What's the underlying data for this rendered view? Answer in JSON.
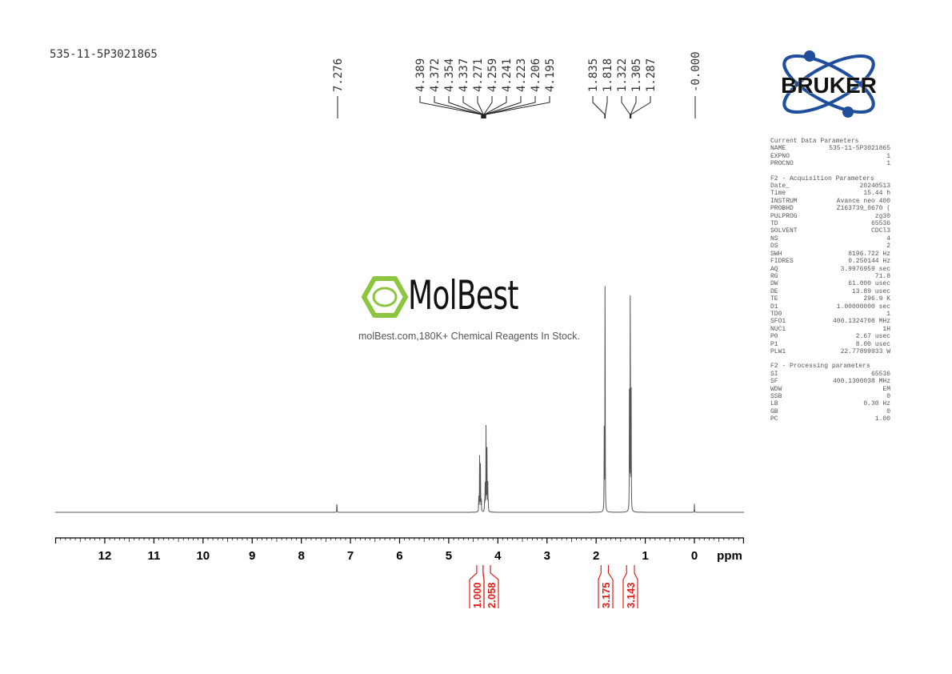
{
  "sample_name": "535-11-5P3021865",
  "watermark": {
    "brand": "MolBest",
    "tagline": "molBest.com,180K+ Chemical Reagents In Stock."
  },
  "logo": {
    "text": "BRUKER",
    "color": "#1f4e9c"
  },
  "parameters": {
    "current": {
      "title": "Current Data Parameters",
      "rows": [
        [
          "NAME",
          "535-11-5P3021865"
        ],
        [
          "EXPNO",
          "1"
        ],
        [
          "PROCNO",
          "1"
        ]
      ]
    },
    "acquisition": {
      "title": "F2 - Acquisition Parameters",
      "rows": [
        [
          "Date_",
          "20240513"
        ],
        [
          "Time",
          "15.44 h"
        ],
        [
          "INSTRUM",
          "Avance neo 400"
        ],
        [
          "PROBHD",
          "Z163739_0670 ("
        ],
        [
          "PULPROG",
          "zg30"
        ],
        [
          "TD",
          "65536"
        ],
        [
          "SOLVENT",
          "CDCl3"
        ],
        [
          "NS",
          "4"
        ],
        [
          "DS",
          "2"
        ],
        [
          "SWH",
          "8196.722 Hz"
        ],
        [
          "FIDRES",
          "0.250144 Hz"
        ],
        [
          "AQ",
          "3.9976959 sec"
        ],
        [
          "RG",
          "71.8"
        ],
        [
          "DW",
          "61.000 usec"
        ],
        [
          "DE",
          "13.89 usec"
        ],
        [
          "TE",
          "296.9 K"
        ],
        [
          "D1",
          "1.00000000 sec"
        ],
        [
          "TD0",
          "1"
        ],
        [
          "SFO1",
          "400.1324708 MHz"
        ],
        [
          "NUC1",
          "1H"
        ],
        [
          "P0",
          "2.67 usec"
        ],
        [
          "P1",
          "8.00 usec"
        ],
        [
          "PLW1",
          "22.77899933 W"
        ]
      ]
    },
    "processing": {
      "title": "F2 - Processing parameters",
      "rows": [
        [
          "SI",
          "65536"
        ],
        [
          "SF",
          "400.1300038 MHz"
        ],
        [
          "WDW",
          "EM"
        ],
        [
          "SSB",
          "0"
        ],
        [
          "LB",
          "0.30 Hz"
        ],
        [
          "GB",
          "0"
        ],
        [
          "PC",
          "1.00"
        ]
      ]
    }
  },
  "chart_data": {
    "type": "line",
    "xlabel": "ppm",
    "xlim": [
      13.0,
      -1.0
    ],
    "x_reversed": true,
    "x_ticks": [
      "12",
      "11",
      "10",
      "9",
      "8",
      "7",
      "6",
      "5",
      "4",
      "3",
      "2",
      "1",
      "0"
    ],
    "spectrum_peaks": [
      {
        "ppm": 7.276,
        "intensity": 4
      },
      {
        "ppm": 4.389,
        "intensity": 6
      },
      {
        "ppm": 4.372,
        "intensity": 20
      },
      {
        "ppm": 4.354,
        "intensity": 20
      },
      {
        "ppm": 4.337,
        "intensity": 6
      },
      {
        "ppm": 4.271,
        "intensity": 4
      },
      {
        "ppm": 4.259,
        "intensity": 12
      },
      {
        "ppm": 4.241,
        "intensity": 30
      },
      {
        "ppm": 4.223,
        "intensity": 33
      },
      {
        "ppm": 4.206,
        "intensity": 12
      },
      {
        "ppm": 4.195,
        "intensity": 4
      },
      {
        "ppm": 1.835,
        "intensity": 30
      },
      {
        "ppm": 1.818,
        "intensity": 100
      },
      {
        "ppm": 1.322,
        "intensity": 45
      },
      {
        "ppm": 1.305,
        "intensity": 98
      },
      {
        "ppm": 1.287,
        "intensity": 45
      },
      {
        "ppm": 0.0,
        "intensity": 3
      }
    ],
    "peak_labels": [
      {
        "group": [
          "7.276"
        ],
        "ppm": 7.276
      },
      {
        "group": [
          "4.389",
          "4.372",
          "4.354",
          "4.337",
          "4.271",
          "4.259",
          "4.241",
          "4.223",
          "4.206",
          "4.195"
        ],
        "ppm": 4.29
      },
      {
        "group": [
          "1.835",
          "1.818"
        ],
        "ppm": 1.82
      },
      {
        "group": [
          "1.322",
          "1.305",
          "1.287"
        ],
        "ppm": 1.3
      },
      {
        "group": [
          "-0.000"
        ],
        "ppm": 0.0
      }
    ],
    "integrals": [
      {
        "value": "1.000",
        "from": 4.43,
        "to": 4.3
      },
      {
        "value": "2.058",
        "from": 4.3,
        "to": 4.15
      },
      {
        "value": "3.175",
        "from": 1.9,
        "to": 1.75
      },
      {
        "value": "3.143",
        "from": 1.38,
        "to": 1.22
      }
    ],
    "colors": {
      "spectrum": "#555555",
      "integral": "#e0201a"
    }
  }
}
